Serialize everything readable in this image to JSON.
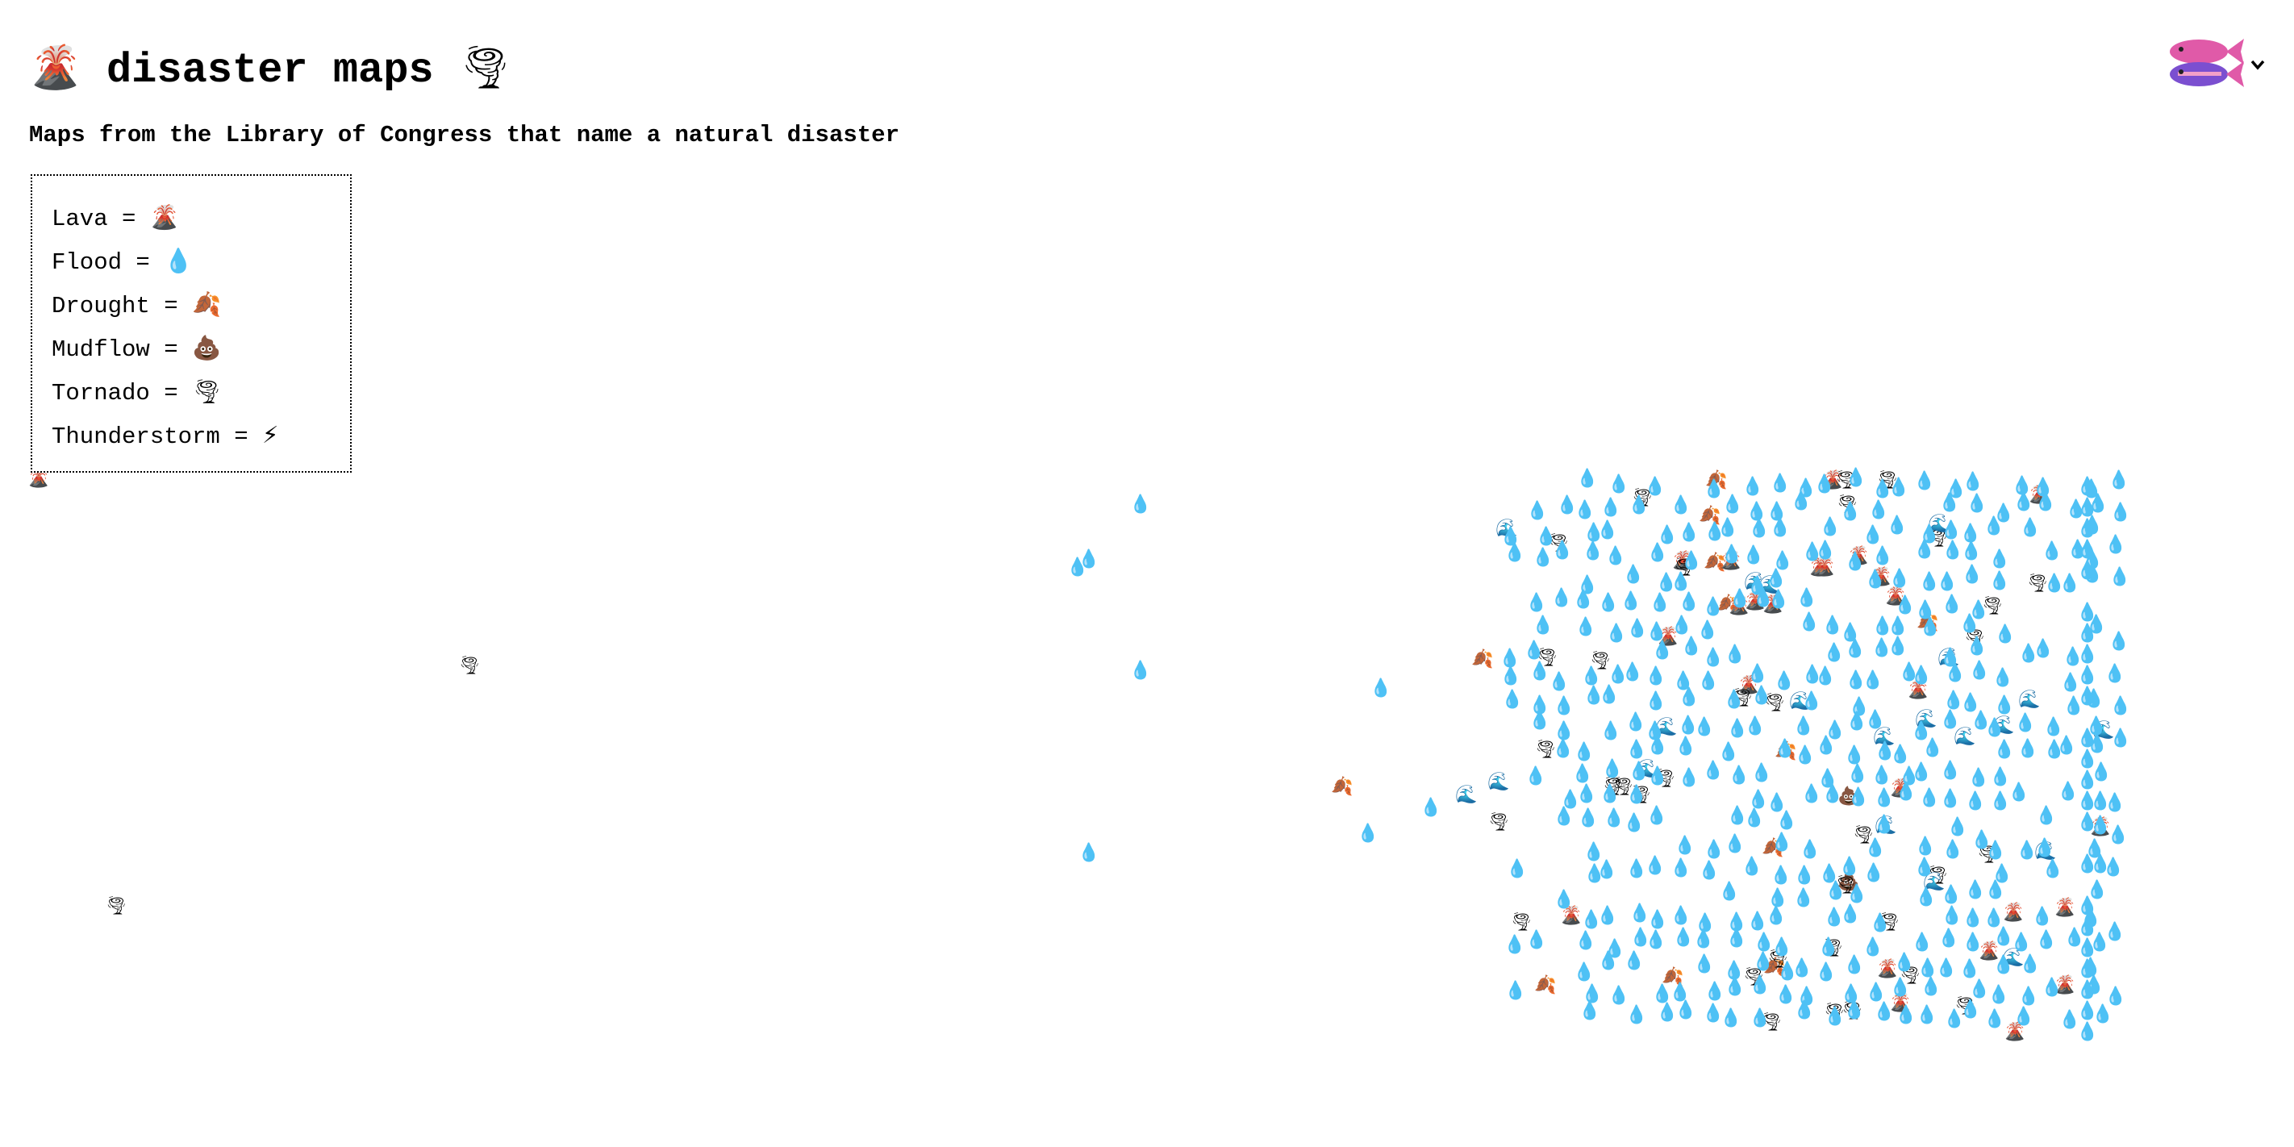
{
  "header": {
    "title": "disaster maps",
    "title_icon_left": "volcano-icon",
    "title_icon_right": "tornado-icon",
    "subtitle": "Maps from the Library of Congress that name a natural disaster"
  },
  "legend": {
    "items": [
      {
        "label": "Lava =",
        "icon": "volcano-icon",
        "glyph": "🌋"
      },
      {
        "label": "Flood =",
        "icon": "droplet-icon",
        "glyph": "💧"
      },
      {
        "label": "Drought =",
        "icon": "fallen-leaf-icon",
        "glyph": "🍂"
      },
      {
        "label": "Mudflow =",
        "icon": "poop-icon",
        "glyph": "💩"
      },
      {
        "label": "Tornado =",
        "icon": "tornado-icon",
        "glyph": "🌪"
      },
      {
        "label": "Thunderstorm =",
        "icon": "lightning-icon",
        "glyph": "⚡"
      }
    ]
  },
  "user_menu": {
    "avatar_icon": "fish-icon",
    "toggle_icon": "chevron-down-icon"
  },
  "colors": {
    "flood": "#3fb4f0",
    "lava": "#c8551e",
    "drought": "#b5561c",
    "mudflow": "#6b3a1d",
    "tornado": "#8e949c",
    "wave": "#2e73c8",
    "fish_pink": "#e05aa8",
    "fish_purple": "#7b4fd0"
  },
  "map": {
    "marker_types": {
      "f": {
        "type": "Flood",
        "icon": "droplet-icon",
        "glyph": "💧"
      },
      "l": {
        "type": "Lava",
        "icon": "volcano-icon",
        "glyph": "🌋"
      },
      "d": {
        "type": "Drought",
        "icon": "fallen-leaf-icon",
        "glyph": "🍂"
      },
      "m": {
        "type": "Mudflow",
        "icon": "poop-icon",
        "glyph": "💩"
      },
      "t": {
        "type": "Tornado",
        "icon": "tornado-icon",
        "glyph": "🌪"
      },
      "w": {
        "type": "Wave",
        "icon": "wave-icon",
        "glyph": "🌊"
      }
    }
  }
}
